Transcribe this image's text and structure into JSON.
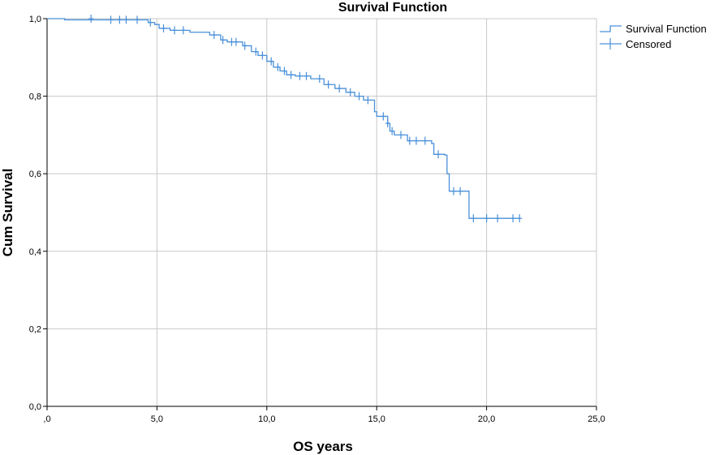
{
  "chart_data": {
    "type": "line",
    "title": "Survival Function",
    "xlabel": "OS years",
    "ylabel": "Cum Survival",
    "xlim": [
      0,
      25
    ],
    "ylim": [
      0,
      1
    ],
    "x_ticks": [
      ",0",
      "5,0",
      "10,0",
      "15,0",
      "20,0",
      "25,0"
    ],
    "y_ticks": [
      "0,0",
      "0,2",
      "0,4",
      "0,6",
      "0,8",
      "1,0"
    ],
    "grid": true,
    "legend_position": "top-right",
    "colors": {
      "series": "#4a90d9",
      "grid": "#c8c8c8",
      "axis": "#000000"
    },
    "series": [
      {
        "name": "Survival Function",
        "step": [
          [
            0,
            1.0
          ],
          [
            0.8,
            0.997
          ],
          [
            4.6,
            0.99
          ],
          [
            4.9,
            0.985
          ],
          [
            5.1,
            0.975
          ],
          [
            5.6,
            0.97
          ],
          [
            6.5,
            0.965
          ],
          [
            7.4,
            0.958
          ],
          [
            7.9,
            0.945
          ],
          [
            8.2,
            0.94
          ],
          [
            8.9,
            0.93
          ],
          [
            9.3,
            0.915
          ],
          [
            9.6,
            0.905
          ],
          [
            10.0,
            0.89
          ],
          [
            10.3,
            0.875
          ],
          [
            10.6,
            0.865
          ],
          [
            10.9,
            0.855
          ],
          [
            11.3,
            0.852
          ],
          [
            12.0,
            0.845
          ],
          [
            12.6,
            0.83
          ],
          [
            13.1,
            0.82
          ],
          [
            13.6,
            0.81
          ],
          [
            14.0,
            0.8
          ],
          [
            14.4,
            0.79
          ],
          [
            14.9,
            0.76
          ],
          [
            15.0,
            0.748
          ],
          [
            15.5,
            0.73
          ],
          [
            15.6,
            0.71
          ],
          [
            15.8,
            0.7
          ],
          [
            16.4,
            0.685
          ],
          [
            17.5,
            0.678
          ],
          [
            17.6,
            0.65
          ],
          [
            18.1,
            0.648
          ],
          [
            18.2,
            0.6
          ],
          [
            18.3,
            0.555
          ],
          [
            19.2,
            0.485
          ],
          [
            21.5,
            0.485
          ]
        ]
      },
      {
        "name": "Censored",
        "points": [
          [
            2.0,
            1.0
          ],
          [
            2.9,
            0.997
          ],
          [
            3.3,
            0.997
          ],
          [
            3.6,
            0.997
          ],
          [
            4.1,
            0.997
          ],
          [
            4.7,
            0.99
          ],
          [
            5.3,
            0.975
          ],
          [
            5.8,
            0.97
          ],
          [
            6.2,
            0.97
          ],
          [
            7.6,
            0.958
          ],
          [
            8.0,
            0.945
          ],
          [
            8.4,
            0.94
          ],
          [
            8.6,
            0.94
          ],
          [
            9.0,
            0.93
          ],
          [
            9.5,
            0.915
          ],
          [
            9.8,
            0.905
          ],
          [
            10.2,
            0.89
          ],
          [
            10.5,
            0.875
          ],
          [
            10.8,
            0.865
          ],
          [
            11.1,
            0.855
          ],
          [
            11.5,
            0.852
          ],
          [
            11.8,
            0.852
          ],
          [
            12.4,
            0.845
          ],
          [
            12.8,
            0.83
          ],
          [
            13.3,
            0.82
          ],
          [
            13.8,
            0.81
          ],
          [
            14.2,
            0.8
          ],
          [
            14.6,
            0.79
          ],
          [
            15.3,
            0.748
          ],
          [
            15.5,
            0.73
          ],
          [
            15.7,
            0.71
          ],
          [
            16.1,
            0.7
          ],
          [
            16.5,
            0.685
          ],
          [
            16.8,
            0.685
          ],
          [
            17.2,
            0.685
          ],
          [
            17.8,
            0.65
          ],
          [
            18.5,
            0.555
          ],
          [
            18.8,
            0.555
          ],
          [
            19.4,
            0.485
          ],
          [
            20.0,
            0.485
          ],
          [
            20.5,
            0.485
          ],
          [
            21.2,
            0.485
          ],
          [
            21.5,
            0.485
          ]
        ]
      }
    ]
  }
}
